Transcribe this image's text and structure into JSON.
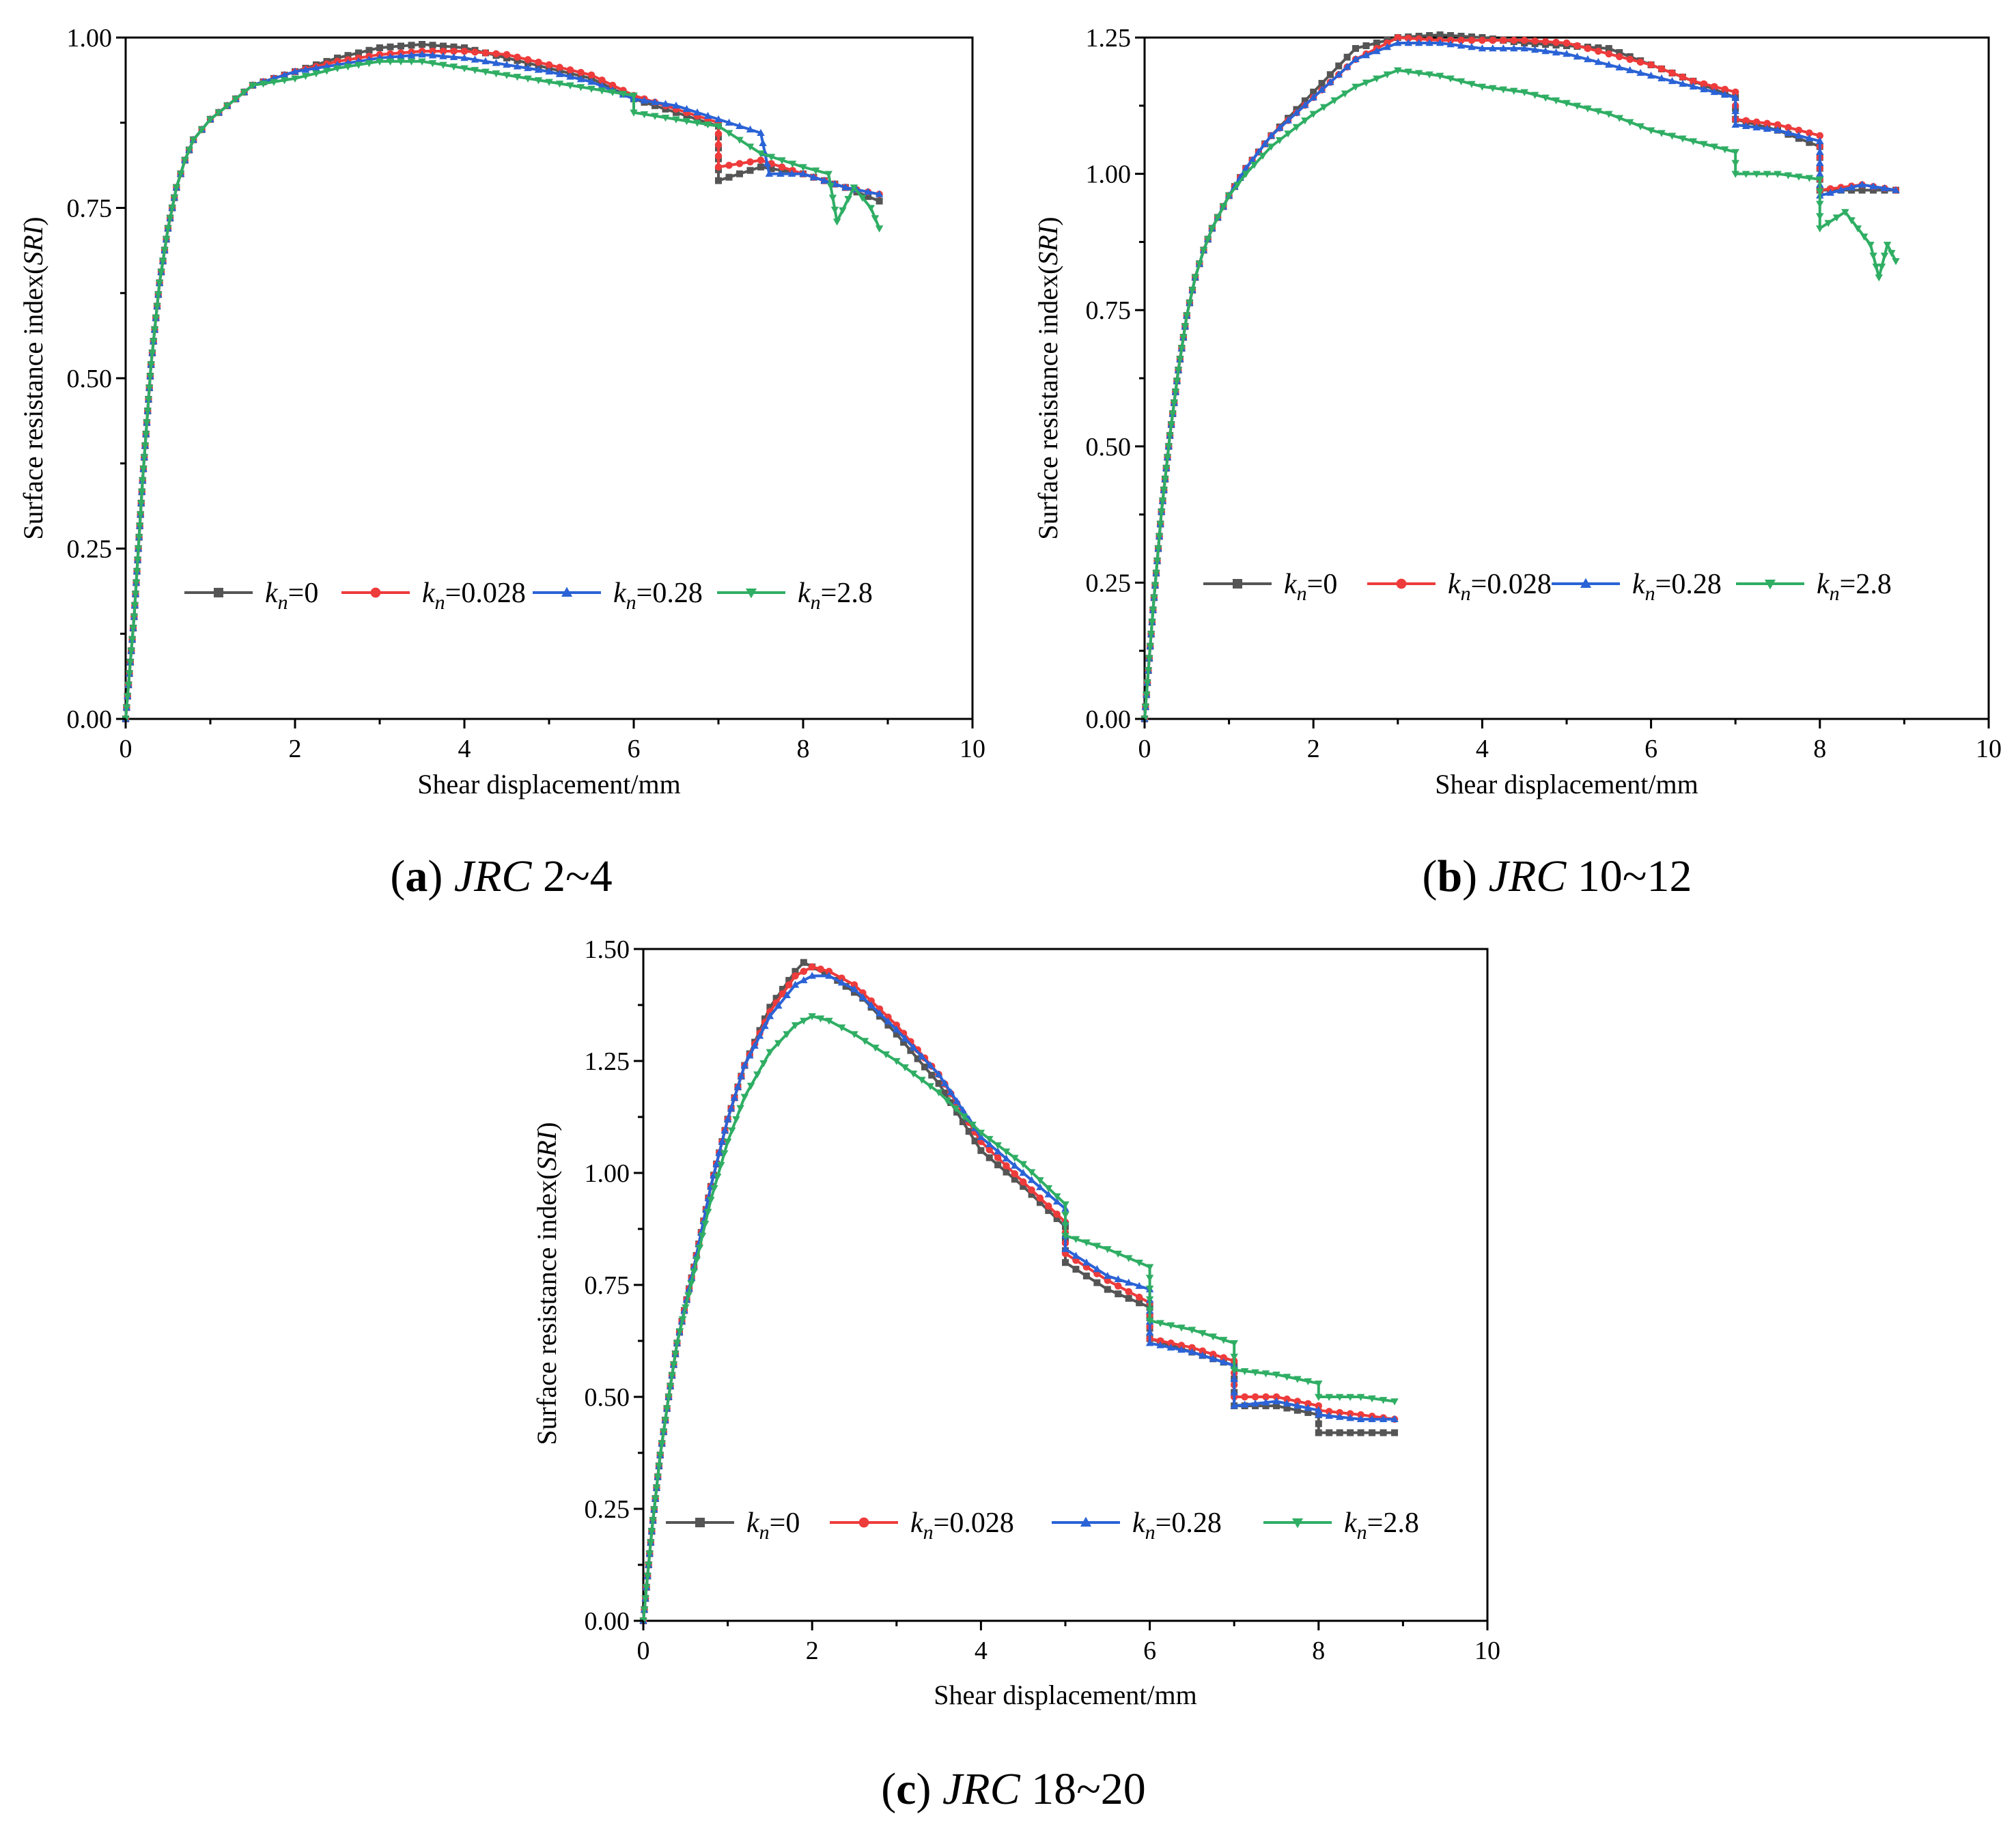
{
  "colors": {
    "kn0": "#555555",
    "kn0028": "#ee3b3b",
    "kn028": "#2b63d6",
    "kn28": "#2fae64",
    "axis": "#000000"
  },
  "legend_entries": [
    {
      "key": "kn0",
      "sym": "k",
      "sub": "n",
      "val": "=0",
      "marker": "square"
    },
    {
      "key": "kn0028",
      "sym": "k",
      "sub": "n",
      "val": "=0.028",
      "marker": "circle"
    },
    {
      "key": "kn028",
      "sym": "k",
      "sub": "n",
      "val": "=0.28",
      "marker": "triangle-up"
    },
    {
      "key": "kn28",
      "sym": "k",
      "sub": "n",
      "val": "=2.8",
      "marker": "triangle-down"
    }
  ],
  "chart_data": [
    {
      "id": "a",
      "type": "line",
      "caption_letter": "a",
      "caption_italic": "JRC",
      "caption_range": " 2~4",
      "xlabel": "Shear displacement/mm",
      "ylabel_plain": "Surface resistance index(",
      "ylabel_italic": "SRI",
      "ylabel_close": ")",
      "xlim": [
        0,
        10
      ],
      "ylim": [
        0,
        1.0
      ],
      "xticks": [
        0,
        2,
        4,
        6,
        8,
        10
      ],
      "yticks": [
        "0.00",
        "0.25",
        "0.50",
        "0.75",
        "1.00"
      ],
      "series": [
        {
          "name": "kn=0",
          "key": "kn0",
          "x": [
            0,
            0.1,
            0.2,
            0.3,
            0.4,
            0.5,
            0.6,
            0.7,
            0.8,
            1.0,
            1.2,
            1.5,
            2,
            2.5,
            3,
            3.5,
            4,
            4.5,
            5,
            5.5,
            6,
            6.5,
            7,
            7.0,
            7.5,
            8,
            8.5,
            8.9
          ],
          "y": [
            0,
            0.15,
            0.35,
            0.52,
            0.64,
            0.72,
            0.78,
            0.82,
            0.85,
            0.88,
            0.9,
            0.93,
            0.95,
            0.97,
            0.985,
            0.99,
            0.985,
            0.97,
            0.955,
            0.94,
            0.91,
            0.89,
            0.87,
            0.79,
            0.81,
            0.8,
            0.78,
            0.76
          ]
        },
        {
          "name": "kn=0.028",
          "key": "kn0028",
          "x": [
            0,
            0.1,
            0.2,
            0.3,
            0.4,
            0.5,
            0.6,
            0.7,
            0.8,
            1.0,
            1.2,
            1.5,
            2,
            2.5,
            3,
            3.5,
            4,
            4.5,
            5,
            5.5,
            6,
            6.5,
            7,
            7.0,
            7.5,
            8,
            8.5,
            8.9
          ],
          "y": [
            0,
            0.15,
            0.35,
            0.52,
            0.64,
            0.72,
            0.78,
            0.82,
            0.85,
            0.88,
            0.9,
            0.93,
            0.95,
            0.965,
            0.975,
            0.98,
            0.98,
            0.975,
            0.96,
            0.945,
            0.915,
            0.895,
            0.875,
            0.81,
            0.82,
            0.8,
            0.78,
            0.77
          ]
        },
        {
          "name": "kn=0.28",
          "key": "kn028",
          "x": [
            0,
            0.1,
            0.2,
            0.3,
            0.4,
            0.5,
            0.6,
            0.7,
            0.8,
            1.0,
            1.2,
            1.5,
            2,
            2.5,
            3,
            3.5,
            4,
            4.5,
            5,
            5.5,
            6,
            6.5,
            7,
            7.5,
            7.6,
            8,
            8.5,
            8.9
          ],
          "y": [
            0,
            0.15,
            0.35,
            0.52,
            0.64,
            0.72,
            0.78,
            0.82,
            0.85,
            0.88,
            0.9,
            0.93,
            0.95,
            0.96,
            0.97,
            0.975,
            0.97,
            0.96,
            0.95,
            0.935,
            0.91,
            0.9,
            0.88,
            0.86,
            0.8,
            0.8,
            0.78,
            0.77
          ]
        },
        {
          "name": "kn=2.8",
          "key": "kn28",
          "x": [
            0,
            0.1,
            0.2,
            0.3,
            0.4,
            0.5,
            0.6,
            0.7,
            0.8,
            1.0,
            1.2,
            1.5,
            2,
            2.5,
            3,
            3.5,
            4,
            4.5,
            5,
            5.5,
            6,
            6.0,
            6.5,
            7,
            7.5,
            8,
            8.3,
            8.4,
            8.6,
            8.8,
            8.9
          ],
          "y": [
            0,
            0.15,
            0.35,
            0.52,
            0.64,
            0.72,
            0.78,
            0.82,
            0.85,
            0.88,
            0.9,
            0.93,
            0.94,
            0.955,
            0.965,
            0.965,
            0.955,
            0.945,
            0.935,
            0.925,
            0.915,
            0.89,
            0.88,
            0.87,
            0.83,
            0.81,
            0.8,
            0.73,
            0.78,
            0.75,
            0.72
          ]
        }
      ]
    },
    {
      "id": "b",
      "type": "line",
      "caption_letter": "b",
      "caption_italic": "JRC",
      "caption_range": " 10~12",
      "xlabel": "Shear displacement/mm",
      "ylabel_plain": "Surface resistance index(",
      "ylabel_italic": "SRI",
      "ylabel_close": ")",
      "xlim": [
        0,
        10
      ],
      "ylim": [
        0,
        1.25
      ],
      "xticks": [
        0,
        2,
        4,
        6,
        8,
        10
      ],
      "yticks": [
        "0.00",
        "0.25",
        "0.50",
        "0.75",
        "1.00",
        "1.25"
      ],
      "series": [
        {
          "name": "kn=0",
          "key": "kn0",
          "x": [
            0,
            0.1,
            0.2,
            0.3,
            0.4,
            0.5,
            0.6,
            0.7,
            0.8,
            1.0,
            1.2,
            1.5,
            2,
            2.5,
            3,
            3.5,
            4,
            4.5,
            5,
            5.5,
            6,
            6.5,
            7,
            7.0,
            7.5,
            8,
            8.0,
            8.5,
            8.9
          ],
          "y": [
            0,
            0.2,
            0.38,
            0.52,
            0.64,
            0.74,
            0.81,
            0.86,
            0.9,
            0.96,
            1.01,
            1.07,
            1.15,
            1.23,
            1.25,
            1.255,
            1.25,
            1.24,
            1.235,
            1.23,
            1.2,
            1.17,
            1.14,
            1.1,
            1.08,
            1.05,
            0.97,
            0.97,
            0.97
          ]
        },
        {
          "name": "kn=0.028",
          "key": "kn0028",
          "x": [
            0,
            0.1,
            0.2,
            0.3,
            0.4,
            0.5,
            0.6,
            0.7,
            0.8,
            1.0,
            1.2,
            1.5,
            2,
            2.5,
            3,
            3.5,
            4,
            4.5,
            5,
            5.5,
            6,
            6.5,
            7,
            7.0,
            7.5,
            8,
            8.0,
            8.5,
            8.9
          ],
          "y": [
            0,
            0.2,
            0.38,
            0.52,
            0.64,
            0.74,
            0.81,
            0.86,
            0.9,
            0.96,
            1.01,
            1.07,
            1.14,
            1.21,
            1.25,
            1.245,
            1.245,
            1.245,
            1.24,
            1.22,
            1.2,
            1.17,
            1.15,
            1.1,
            1.09,
            1.07,
            0.97,
            0.98,
            0.97
          ]
        },
        {
          "name": "kn=0.28",
          "key": "kn028",
          "x": [
            0,
            0.1,
            0.2,
            0.3,
            0.4,
            0.5,
            0.6,
            0.7,
            0.8,
            1.0,
            1.2,
            1.5,
            2,
            2.5,
            3,
            3.5,
            4,
            4.5,
            5,
            5.5,
            6,
            6.5,
            7,
            7.0,
            7.5,
            8,
            8.0,
            8.5,
            8.9
          ],
          "y": [
            0,
            0.2,
            0.38,
            0.52,
            0.64,
            0.74,
            0.81,
            0.86,
            0.9,
            0.96,
            1.01,
            1.07,
            1.14,
            1.21,
            1.24,
            1.24,
            1.23,
            1.23,
            1.22,
            1.2,
            1.18,
            1.16,
            1.14,
            1.09,
            1.08,
            1.06,
            0.96,
            0.98,
            0.97
          ]
        },
        {
          "name": "kn=2.8",
          "key": "kn28",
          "x": [
            0,
            0.1,
            0.2,
            0.3,
            0.4,
            0.5,
            0.6,
            0.7,
            0.8,
            1.0,
            1.2,
            1.5,
            2,
            2.5,
            3,
            3.5,
            4,
            4.5,
            5,
            5.5,
            6,
            6.5,
            7,
            7.0,
            7.5,
            8,
            8.0,
            8.3,
            8.6,
            8.7,
            8.8,
            8.9
          ],
          "y": [
            0,
            0.2,
            0.38,
            0.52,
            0.64,
            0.74,
            0.81,
            0.86,
            0.9,
            0.96,
            1.0,
            1.05,
            1.11,
            1.16,
            1.19,
            1.18,
            1.16,
            1.15,
            1.13,
            1.11,
            1.08,
            1.06,
            1.04,
            1.0,
            1.0,
            0.99,
            0.9,
            0.93,
            0.87,
            0.81,
            0.87,
            0.84
          ]
        }
      ]
    },
    {
      "id": "c",
      "type": "line",
      "caption_letter": "c",
      "caption_italic": "JRC",
      "caption_range": " 18~20",
      "xlabel": "Shear displacement/mm",
      "ylabel_plain": "Surface resistance index(",
      "ylabel_italic": "SRI",
      "ylabel_close": ")",
      "xlim": [
        0,
        10
      ],
      "ylim": [
        0,
        1.5
      ],
      "xticks": [
        0,
        2,
        4,
        6,
        8,
        10
      ],
      "yticks": [
        "0.00",
        "0.25",
        "0.50",
        "0.75",
        "1.00",
        "1.25",
        "1.50"
      ],
      "series": [
        {
          "name": "kn=0",
          "key": "kn0",
          "x": [
            0,
            0.1,
            0.2,
            0.3,
            0.4,
            0.6,
            0.8,
            1.0,
            1.2,
            1.5,
            1.8,
            1.9,
            2.0,
            2.3,
            2.6,
            3,
            3.5,
            4,
            4.5,
            5,
            5.0,
            5.5,
            6,
            6.0,
            6.5,
            7,
            7.0,
            7.5,
            8,
            8.0,
            8.5,
            8.9
          ],
          "y": [
            0,
            0.2,
            0.37,
            0.5,
            0.62,
            0.79,
            0.97,
            1.12,
            1.24,
            1.37,
            1.45,
            1.47,
            1.46,
            1.43,
            1.39,
            1.31,
            1.2,
            1.05,
            0.97,
            0.88,
            0.8,
            0.74,
            0.7,
            0.63,
            0.6,
            0.57,
            0.48,
            0.48,
            0.46,
            0.42,
            0.42,
            0.42
          ]
        },
        {
          "name": "kn=0.028",
          "key": "kn0028",
          "x": [
            0,
            0.1,
            0.2,
            0.3,
            0.4,
            0.6,
            0.8,
            1.0,
            1.2,
            1.5,
            1.8,
            2.0,
            2.2,
            2.5,
            3,
            3.5,
            4,
            4.5,
            5,
            5.0,
            5.5,
            6,
            6.0,
            6.5,
            7,
            7.0,
            7.5,
            8,
            8.0,
            8.5,
            8.9
          ],
          "y": [
            0,
            0.2,
            0.37,
            0.5,
            0.62,
            0.79,
            0.97,
            1.12,
            1.24,
            1.36,
            1.44,
            1.46,
            1.45,
            1.42,
            1.33,
            1.22,
            1.07,
            0.98,
            0.89,
            0.82,
            0.76,
            0.71,
            0.63,
            0.61,
            0.58,
            0.5,
            0.5,
            0.48,
            0.47,
            0.46,
            0.45
          ]
        },
        {
          "name": "kn=0.28",
          "key": "kn028",
          "x": [
            0,
            0.1,
            0.2,
            0.3,
            0.4,
            0.6,
            0.8,
            1.0,
            1.2,
            1.5,
            1.8,
            2.0,
            2.2,
            2.5,
            3,
            3.5,
            4,
            4.5,
            5,
            5.0,
            5.5,
            6,
            6.0,
            6.5,
            7,
            7.0,
            7.5,
            8,
            8.0,
            8.5,
            8.9
          ],
          "y": [
            0,
            0.2,
            0.37,
            0.5,
            0.62,
            0.79,
            0.97,
            1.12,
            1.24,
            1.35,
            1.42,
            1.44,
            1.44,
            1.41,
            1.32,
            1.22,
            1.08,
            1.0,
            0.92,
            0.83,
            0.77,
            0.74,
            0.62,
            0.6,
            0.57,
            0.48,
            0.49,
            0.47,
            0.46,
            0.45,
            0.45
          ]
        },
        {
          "name": "kn=2.8",
          "key": "kn28",
          "x": [
            0,
            0.1,
            0.2,
            0.3,
            0.4,
            0.6,
            0.8,
            1.0,
            1.2,
            1.5,
            1.8,
            2.0,
            2.2,
            2.5,
            3,
            3.5,
            4,
            4.5,
            5,
            5.0,
            5.5,
            6,
            6.0,
            6.5,
            7,
            7.0,
            7.5,
            8,
            8.0,
            8.5,
            8.9
          ],
          "y": [
            0,
            0.2,
            0.37,
            0.5,
            0.62,
            0.78,
            0.94,
            1.07,
            1.17,
            1.27,
            1.33,
            1.35,
            1.34,
            1.31,
            1.25,
            1.18,
            1.09,
            1.02,
            0.93,
            0.86,
            0.83,
            0.79,
            0.67,
            0.65,
            0.62,
            0.56,
            0.55,
            0.53,
            0.5,
            0.5,
            0.49
          ]
        }
      ]
    }
  ]
}
